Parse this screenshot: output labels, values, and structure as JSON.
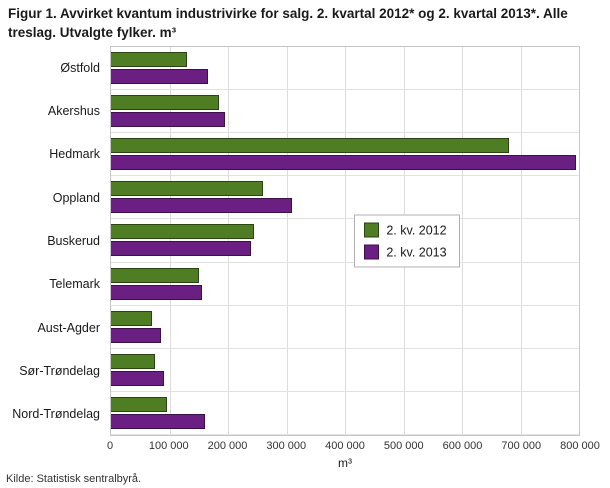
{
  "title": "Figur 1. Avvirket kvantum industrivirke for salg. 2. kvartal 2012* og 2. kvartal 2013*. Alle treslag. Utvalgte fylker. m³",
  "source": "Kilde: Statistisk sentralbyrå.",
  "colors": {
    "series_2012": "#4e7d23",
    "series_2013": "#6c1f82",
    "gridline": "#dcdcdc",
    "plot_border": "#c6c6c6"
  },
  "chart_data": {
    "type": "bar",
    "orientation": "horizontal",
    "title": "Figur 1. Avvirket kvantum industrivirke for salg. 2. kvartal 2012* og 2. kvartal 2013*. Alle treslag. Utvalgte fylker. m³",
    "xlabel": "m³",
    "ylabel": "",
    "grid": true,
    "legend_position": "right-center-inside",
    "categories": [
      "Østfold",
      "Akershus",
      "Hedmark",
      "Oppland",
      "Buskerud",
      "Telemark",
      "Aust-Agder",
      "Sør-Trøndelag",
      "Nord-Trøndelag"
    ],
    "series": [
      {
        "name": "2. kv. 2012",
        "color": "#4e7d23",
        "values": [
          130000,
          185000,
          680000,
          260000,
          245000,
          150000,
          70000,
          75000,
          95000
        ]
      },
      {
        "name": "2. kv. 2013",
        "color": "#6c1f82",
        "values": [
          165000,
          195000,
          795000,
          310000,
          240000,
          155000,
          85000,
          90000,
          160000
        ]
      }
    ],
    "xlim": [
      0,
      800000
    ],
    "xticks": [
      0,
      100000,
      200000,
      300000,
      400000,
      500000,
      600000,
      700000,
      800000
    ],
    "xtick_labels": [
      "0",
      "100 000",
      "200 000",
      "300 000",
      "400 000",
      "500 000",
      "600 000",
      "700 000",
      "800 000"
    ]
  }
}
